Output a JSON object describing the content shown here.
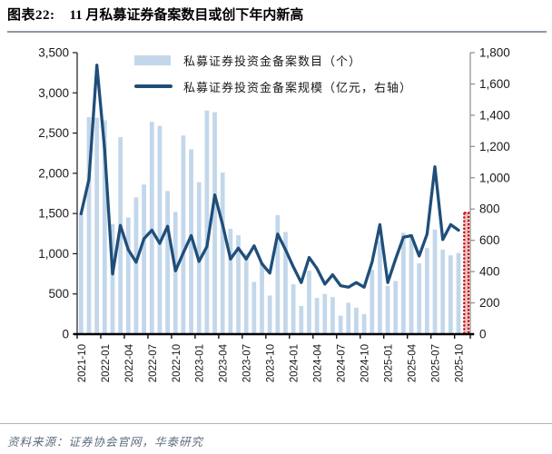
{
  "header": {
    "label": "图表22:",
    "title": "11 月私募证券备案数目或创下年内新高"
  },
  "legend": [
    {
      "label": "私募证券投资金备案数目（个）",
      "type": "bar"
    },
    {
      "label": "私募证券投资金备案规模（亿元，右轴）",
      "type": "line"
    }
  ],
  "footer": {
    "source": "资料来源：证券协会官网，华泰研究"
  },
  "chart_data": {
    "type": "bar+line",
    "title": "11 月私募证券备案数目或创下年内新高",
    "categories": [
      "2021-10",
      "2021-11",
      "2021-12",
      "2022-01",
      "2022-02",
      "2022-03",
      "2022-04",
      "2022-05",
      "2022-06",
      "2022-07",
      "2022-08",
      "2022-09",
      "2022-10",
      "2022-11",
      "2022-12",
      "2023-01",
      "2023-02",
      "2023-03",
      "2023-04",
      "2023-05",
      "2023-06",
      "2023-07",
      "2023-08",
      "2023-09",
      "2023-10",
      "2023-11",
      "2023-12",
      "2024-01",
      "2024-02",
      "2024-03",
      "2024-04",
      "2024-05",
      "2024-06",
      "2024-07",
      "2024-08",
      "2024-09",
      "2024-10",
      "2024-11",
      "2024-12",
      "2025-01",
      "2025-02",
      "2025-03",
      "2025-04",
      "2025-05",
      "2025-06",
      "2025-07",
      "2025-08",
      "2025-09",
      "2025-10",
      "2025-11"
    ],
    "x_tick_every": 3,
    "series": [
      {
        "name": "私募证券投资金备案数目（个）",
        "type": "bar",
        "axis": "left",
        "highlight_last": true,
        "values": [
          1500,
          2700,
          2690,
          2660,
          1370,
          2450,
          1450,
          1700,
          1860,
          2640,
          2590,
          1780,
          1520,
          2470,
          2300,
          1890,
          2780,
          2760,
          2010,
          1310,
          1230,
          1000,
          650,
          890,
          480,
          1480,
          1270,
          620,
          350,
          790,
          450,
          500,
          460,
          230,
          390,
          330,
          250,
          800,
          1160,
          600,
          660,
          1260,
          1240,
          880,
          1070,
          1300,
          1050,
          980,
          1010,
          1510
        ]
      },
      {
        "name": "私募证券投资金备案规模（亿元，右轴）",
        "type": "line",
        "axis": "right",
        "values": [
          770,
          990,
          1720,
          1180,
          385,
          695,
          540,
          460,
          610,
          665,
          580,
          690,
          405,
          520,
          630,
          465,
          560,
          890,
          700,
          480,
          550,
          480,
          565,
          450,
          390,
          640,
          540,
          430,
          330,
          490,
          420,
          320,
          380,
          310,
          300,
          330,
          300,
          460,
          700,
          330,
          480,
          620,
          630,
          500,
          640,
          1070,
          605,
          700,
          665,
          null
        ]
      }
    ],
    "left_axis": {
      "min": 0,
      "max": 3500,
      "step": 500,
      "tick_labels": [
        "0",
        "500",
        "1,000",
        "1,500",
        "2,000",
        "2,500",
        "3,000",
        "3,500"
      ]
    },
    "right_axis": {
      "min": 0,
      "max": 1800,
      "step": 200,
      "tick_labels": [
        "0",
        "200",
        "400",
        "600",
        "800",
        "1,000",
        "1,200",
        "1,400",
        "1,600",
        "1,800"
      ]
    },
    "grid": false,
    "legend_position": "top-inside",
    "colors": {
      "bar": "#c3d7eb",
      "line": "#1f4e79",
      "highlight": "#c00000"
    }
  }
}
